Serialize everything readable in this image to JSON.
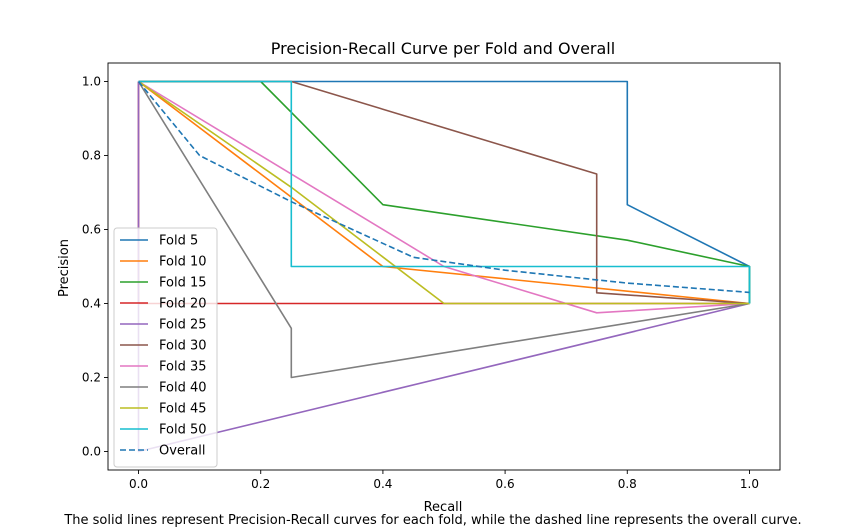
{
  "chart_data": {
    "type": "line",
    "title": "Precision-Recall Curve per Fold and Overall",
    "xlabel": "Recall",
    "ylabel": "Precision",
    "xlim": [
      -0.05,
      1.05
    ],
    "ylim": [
      -0.05,
      1.05
    ],
    "xticks": [
      "0.0",
      "0.2",
      "0.4",
      "0.6",
      "0.8",
      "1.0"
    ],
    "yticks": [
      "0.0",
      "0.2",
      "0.4",
      "0.6",
      "0.8",
      "1.0"
    ],
    "grid": false,
    "legend_position": "lower-left",
    "series": [
      {
        "name": "Fold 5",
        "color": "#1f77b4",
        "style": "solid",
        "x": [
          0.0,
          0.8,
          0.8,
          1.0,
          1.0
        ],
        "y": [
          1.0,
          1.0,
          0.667,
          0.5,
          0.4
        ]
      },
      {
        "name": "Fold 10",
        "color": "#ff7f0e",
        "style": "solid",
        "x": [
          0.0,
          0.4,
          1.0,
          1.0
        ],
        "y": [
          1.0,
          0.5,
          0.4,
          0.4
        ]
      },
      {
        "name": "Fold 15",
        "color": "#2ca02c",
        "style": "solid",
        "x": [
          0.0,
          0.2,
          0.4,
          0.8,
          1.0,
          1.0
        ],
        "y": [
          1.0,
          1.0,
          0.667,
          0.571,
          0.5,
          0.4
        ]
      },
      {
        "name": "Fold 20",
        "color": "#d62728",
        "style": "solid",
        "x": [
          0.0,
          0.0,
          1.0,
          1.0
        ],
        "y": [
          1.0,
          0.4,
          0.4,
          0.4
        ]
      },
      {
        "name": "Fold 25",
        "color": "#9467bd",
        "style": "solid",
        "x": [
          0.0,
          0.0,
          1.0
        ],
        "y": [
          1.0,
          0.0,
          0.4
        ]
      },
      {
        "name": "Fold 30",
        "color": "#8c564b",
        "style": "solid",
        "x": [
          0.0,
          0.25,
          0.75,
          0.75,
          1.0
        ],
        "y": [
          1.0,
          1.0,
          0.75,
          0.429,
          0.4
        ]
      },
      {
        "name": "Fold 35",
        "color": "#e377c2",
        "style": "solid",
        "x": [
          0.0,
          0.5,
          0.75,
          1.0
        ],
        "y": [
          1.0,
          0.5,
          0.375,
          0.4
        ]
      },
      {
        "name": "Fold 40",
        "color": "#7f7f7f",
        "style": "solid",
        "x": [
          0.0,
          0.25,
          0.25,
          1.0
        ],
        "y": [
          1.0,
          0.333,
          0.2,
          0.4
        ]
      },
      {
        "name": "Fold 45",
        "color": "#bcbd22",
        "style": "solid",
        "x": [
          0.0,
          0.25,
          0.5,
          1.0
        ],
        "y": [
          1.0,
          0.714,
          0.4,
          0.4
        ]
      },
      {
        "name": "Fold 50",
        "color": "#17becf",
        "style": "solid",
        "x": [
          0.0,
          0.25,
          0.25,
          1.0,
          1.0
        ],
        "y": [
          1.0,
          1.0,
          0.5,
          0.5,
          0.4
        ]
      },
      {
        "name": "Overall",
        "color": "#1f77b4",
        "style": "dashed",
        "x": [
          0.0,
          0.1,
          0.25,
          0.45,
          0.6,
          0.8,
          1.0
        ],
        "y": [
          1.0,
          0.8,
          0.675,
          0.525,
          0.49,
          0.455,
          0.43
        ]
      }
    ]
  },
  "caption": "The solid lines represent Precision-Recall curves for each fold, while the dashed line represents the overall curve."
}
